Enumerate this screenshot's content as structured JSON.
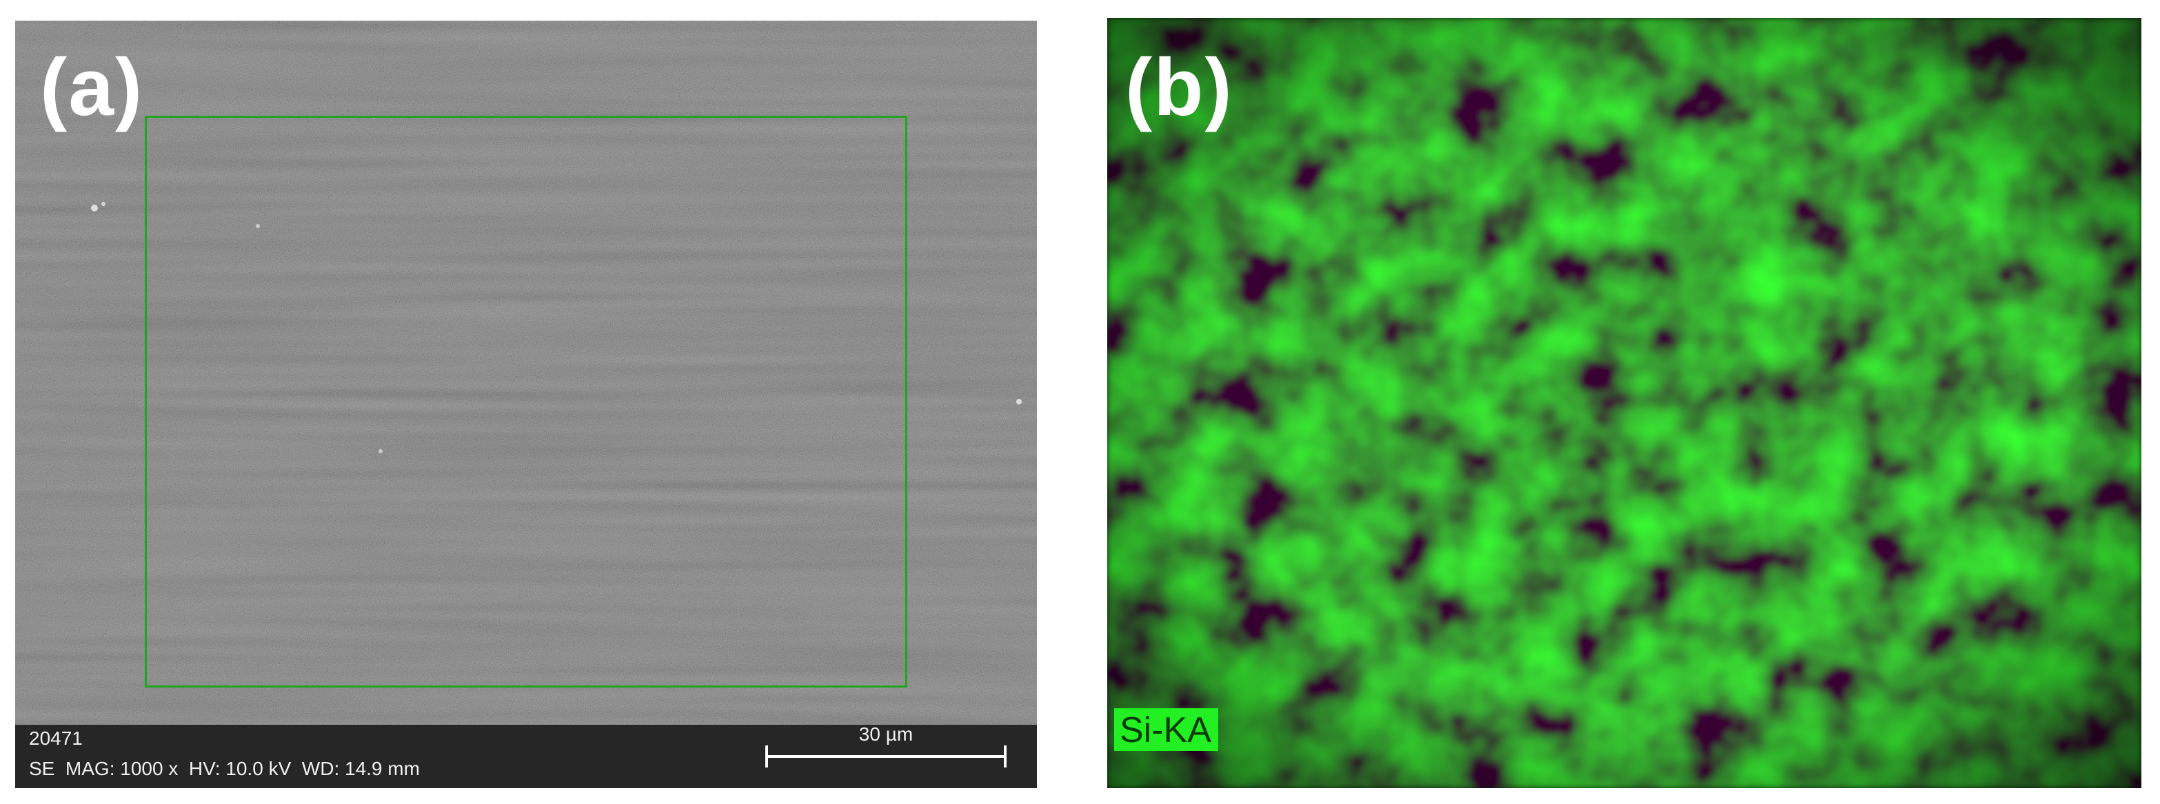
{
  "panels": {
    "a": {
      "label": "(a)",
      "sample_id": "20471",
      "sem_params": "SE  MAG: 1000 x  HV: 10.0 kV  WD: 14.9 mm",
      "scale_label": "30 µm",
      "roi_color": "#1fa51f"
    },
    "b": {
      "label": "(b)",
      "element_tag": "Si-KA",
      "map_color": "#22f022"
    }
  }
}
